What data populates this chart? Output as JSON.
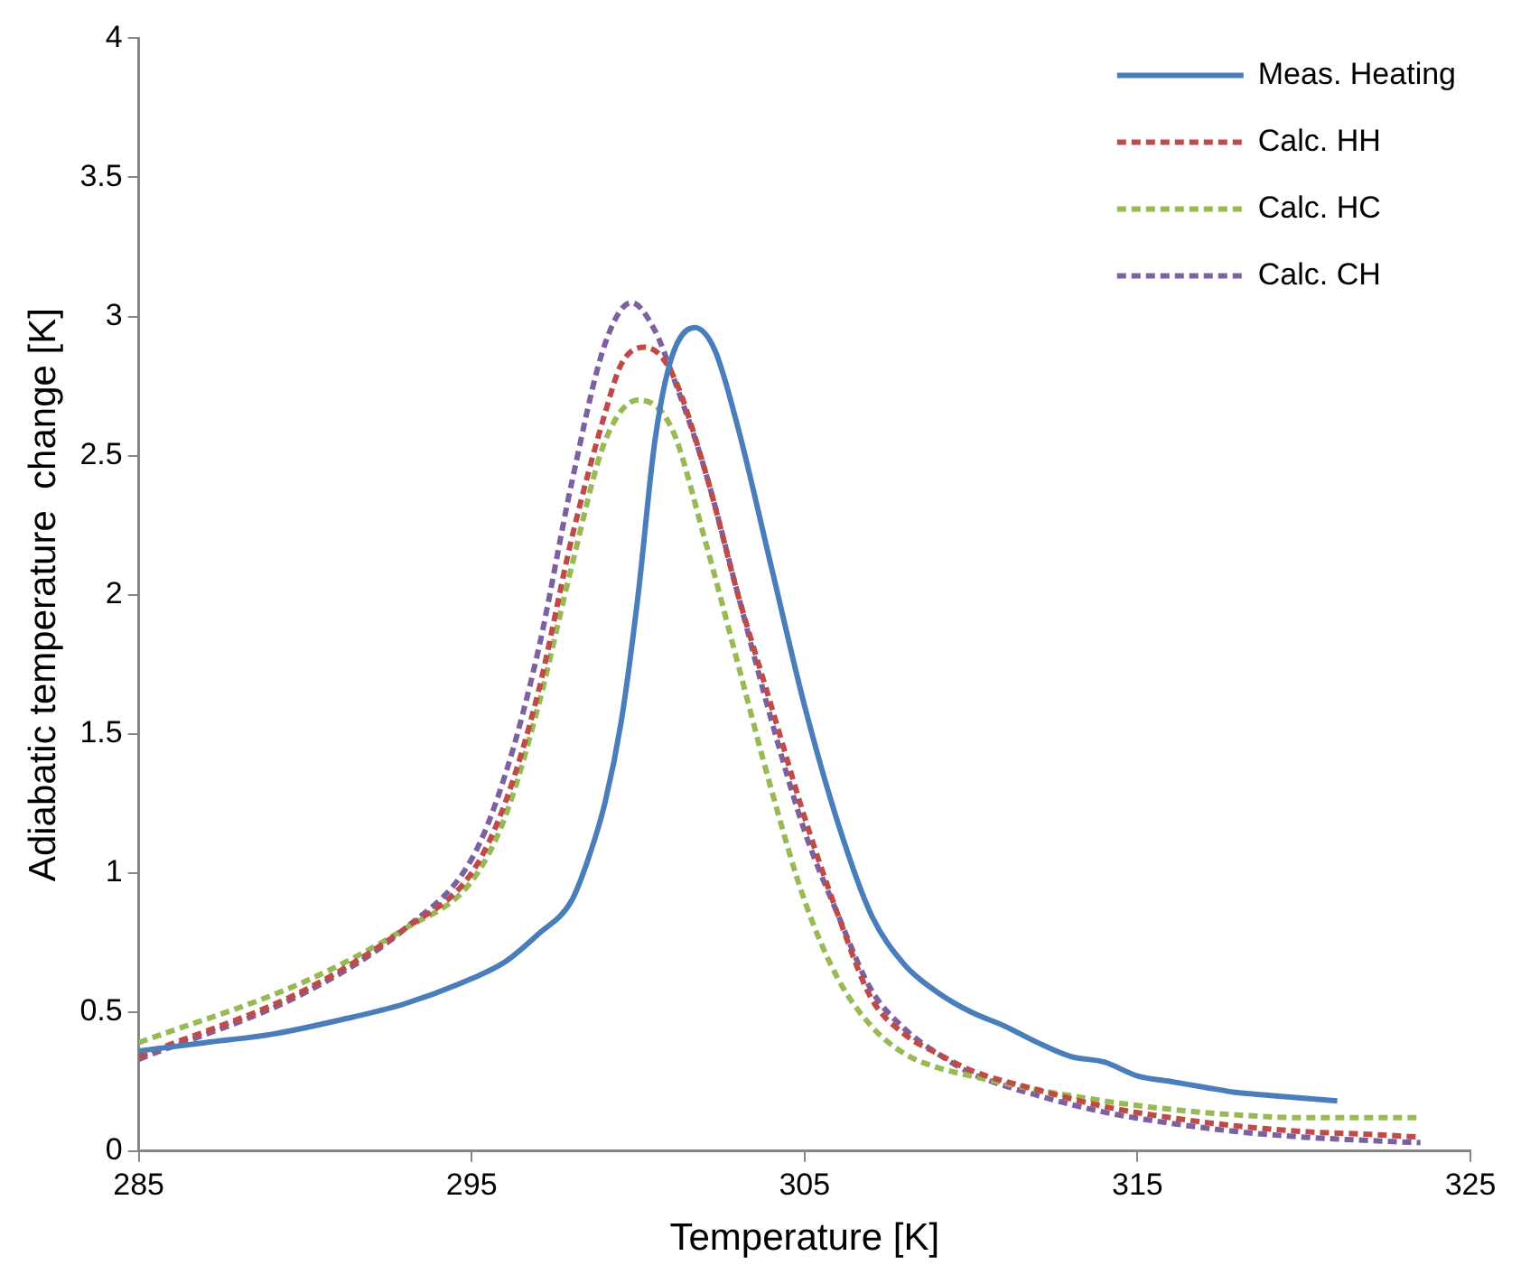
{
  "chart_data": {
    "type": "line",
    "xlabel": "Temperature [K]",
    "ylabel": "Adiabatic temperature  change [K]",
    "xlim": [
      285,
      325
    ],
    "xticks": [
      285,
      295,
      305,
      315,
      325
    ],
    "ylim": [
      0,
      4
    ],
    "yticks": [
      0,
      0.5,
      1,
      1.5,
      2,
      2.5,
      3,
      3.5,
      4
    ],
    "grid": false,
    "legend": "top right",
    "marker": "none",
    "series": [
      {
        "name": "Meas. Heating",
        "color": "#4a7ebb",
        "line_style": "solid",
        "x": [
          285,
          287,
          289,
          291,
          293,
          295,
          296,
          297,
          298,
          298.5,
          299,
          299.5,
          300,
          300.5,
          301,
          301.7,
          302.3,
          303,
          304,
          305,
          306,
          307,
          308,
          309,
          310,
          311,
          312,
          313,
          314,
          315,
          316,
          317,
          318,
          319,
          320,
          321
        ],
        "values": [
          0.36,
          0.39,
          0.42,
          0.47,
          0.53,
          0.62,
          0.68,
          0.78,
          0.9,
          1.05,
          1.25,
          1.55,
          2.0,
          2.55,
          2.85,
          2.96,
          2.88,
          2.6,
          2.1,
          1.6,
          1.18,
          0.85,
          0.67,
          0.57,
          0.5,
          0.45,
          0.39,
          0.34,
          0.32,
          0.27,
          0.25,
          0.23,
          0.21,
          0.2,
          0.19,
          0.18
        ]
      },
      {
        "name": "Calc. HH",
        "color": "#be4b48",
        "line_style": "dashed",
        "x": [
          285,
          290,
          293,
          295,
          296,
          297,
          298,
          299,
          299.5,
          300.2,
          301,
          302,
          303,
          304,
          305,
          306,
          307,
          308,
          309,
          310,
          312,
          314,
          316,
          318,
          320,
          322,
          323.5
        ],
        "values": [
          0.34,
          0.58,
          0.8,
          1.0,
          1.25,
          1.65,
          2.2,
          2.65,
          2.83,
          2.89,
          2.8,
          2.45,
          2.0,
          1.6,
          1.2,
          0.85,
          0.55,
          0.42,
          0.35,
          0.29,
          0.22,
          0.16,
          0.12,
          0.09,
          0.07,
          0.06,
          0.05
        ]
      },
      {
        "name": "Calc. HC",
        "color": "#98b954",
        "line_style": "dashed",
        "x": [
          285,
          290,
          293,
          295,
          296,
          297,
          298,
          299,
          300,
          301,
          302,
          303,
          304,
          305,
          306,
          307,
          308,
          309,
          310,
          312,
          314,
          316,
          318,
          320,
          323.5
        ],
        "values": [
          0.39,
          0.61,
          0.8,
          0.97,
          1.2,
          1.6,
          2.1,
          2.55,
          2.7,
          2.6,
          2.2,
          1.75,
          1.3,
          0.9,
          0.62,
          0.45,
          0.35,
          0.3,
          0.27,
          0.22,
          0.18,
          0.15,
          0.13,
          0.12,
          0.12
        ]
      },
      {
        "name": "Calc. CH",
        "color": "#7d60a0",
        "line_style": "dashed",
        "x": [
          285,
          290,
          293,
          295,
          296,
          297,
          298,
          299,
          299.8,
          300.5,
          301,
          302,
          303,
          304,
          305,
          306,
          307,
          308,
          309,
          310,
          312,
          314,
          316,
          318,
          320,
          323.5
        ],
        "values": [
          0.33,
          0.57,
          0.8,
          1.05,
          1.35,
          1.8,
          2.4,
          2.9,
          3.05,
          2.95,
          2.8,
          2.45,
          2.0,
          1.55,
          1.15,
          0.85,
          0.58,
          0.44,
          0.35,
          0.28,
          0.2,
          0.14,
          0.1,
          0.07,
          0.05,
          0.03
        ]
      }
    ]
  }
}
